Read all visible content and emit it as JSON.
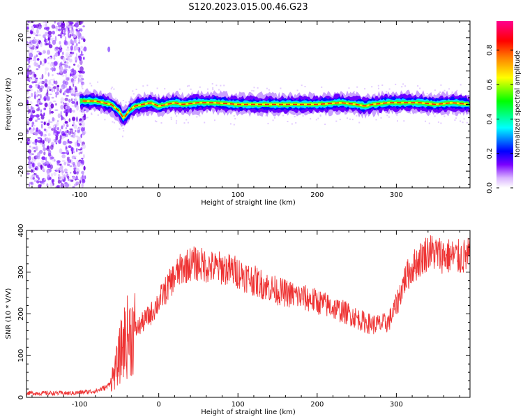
{
  "title": "S120.2023.015.00.46.G23",
  "chart_data": [
    {
      "type": "heatmap",
      "name": "spectrogram",
      "xlabel": "Height of straight line (km)",
      "ylabel": "Frequency (Hz)",
      "xlim": [
        -167,
        393
      ],
      "ylim": [
        -25,
        25
      ],
      "x_ticks": [
        "-100",
        "0",
        "100",
        "200",
        "300"
      ],
      "y_ticks": [
        "20",
        "10",
        "0",
        "-10",
        "-20"
      ],
      "noise_region_x": [
        -167,
        -100
      ],
      "frequency_trace": {
        "x": [
          -100,
          -80,
          -70,
          -60,
          -50,
          -45,
          -42,
          -38,
          -30,
          -20,
          -10,
          0,
          10,
          20,
          30,
          50,
          70,
          100,
          150,
          200,
          230,
          250,
          260,
          270,
          290,
          310,
          330,
          350,
          370,
          393
        ],
        "y": [
          1,
          1,
          0.5,
          0,
          -2,
          -4,
          -3.5,
          -2,
          -0.5,
          0,
          0.5,
          -0.5,
          0,
          0.5,
          0,
          0.5,
          0.5,
          0,
          0,
          0,
          0.5,
          0,
          -0.5,
          0,
          0.5,
          0.5,
          0.5,
          0,
          0.5,
          0
        ]
      },
      "colorbar": {
        "label": "Normalized spectral amplitude",
        "ticks": [
          "0.0",
          "0.2",
          "0.4",
          "0.6",
          "0.8"
        ],
        "range": [
          0,
          0.97
        ],
        "colors": [
          "#ffffff",
          "#d9b3ff",
          "#7a00ff",
          "#0000ff",
          "#00ffff",
          "#00ff00",
          "#ffff00",
          "#ff8000",
          "#ff0000",
          "#ff0090"
        ]
      }
    },
    {
      "type": "line",
      "name": "snr",
      "xlabel": "Height of straight line (km)",
      "ylabel": "SNR (10 * V/V)",
      "xlim": [
        -167,
        393
      ],
      "ylim": [
        0,
        400
      ],
      "x_ticks": [
        "-100",
        "0",
        "100",
        "200",
        "300"
      ],
      "y_ticks": [
        "400",
        "300",
        "200",
        "100",
        "0"
      ],
      "color": "#ee3333",
      "x": [
        -167,
        -140,
        -110,
        -80,
        -65,
        -55,
        -45,
        -38,
        -30,
        -20,
        -10,
        0,
        10,
        20,
        30,
        40,
        50,
        60,
        70,
        80,
        100,
        120,
        150,
        180,
        200,
        220,
        240,
        260,
        270,
        280,
        290,
        300,
        310,
        320,
        330,
        340,
        360,
        380,
        393
      ],
      "y": [
        10,
        10,
        10,
        15,
        25,
        60,
        130,
        150,
        160,
        180,
        200,
        230,
        260,
        290,
        310,
        320,
        320,
        315,
        310,
        310,
        300,
        280,
        255,
        240,
        230,
        215,
        200,
        180,
        175,
        175,
        180,
        220,
        280,
        310,
        330,
        350,
        340,
        335,
        340
      ]
    }
  ]
}
